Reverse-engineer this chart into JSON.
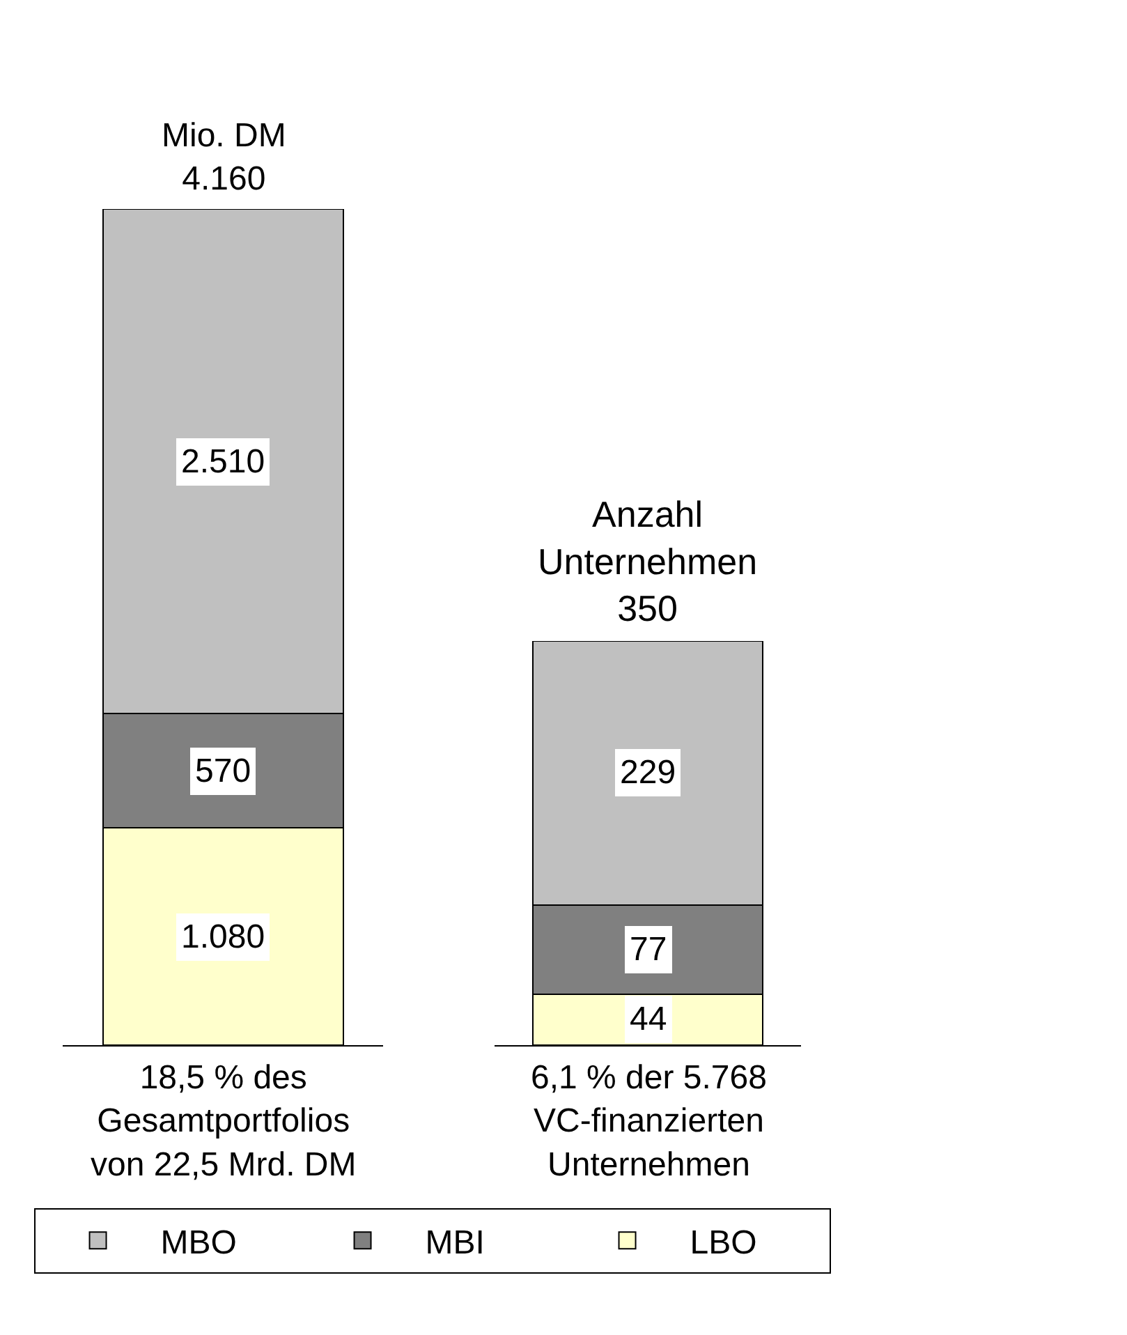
{
  "chart_data": [
    {
      "type": "bar",
      "stacked": true,
      "title": "Mio. DM",
      "totals": [
        "4.160"
      ],
      "xlabel": "18,5 % des\nGesamtportfolios\nvon 22,5 Mrd. DM",
      "categories": [
        null
      ],
      "ylim": [
        0,
        4160
      ],
      "legend": "bottom",
      "series": [
        {
          "name": "LBO",
          "color": "#ffffcc",
          "values": [
            1080
          ],
          "value_labels": [
            "1.080"
          ]
        },
        {
          "name": "MBI",
          "color": "#808080",
          "values": [
            570
          ],
          "value_labels": [
            "570"
          ]
        },
        {
          "name": "MBO",
          "color": "#c0c0c0",
          "values": [
            2510
          ],
          "value_labels": [
            "2.510"
          ]
        }
      ]
    },
    {
      "type": "bar",
      "stacked": true,
      "title": "Anzahl\nUnternehmen",
      "totals": [
        "350"
      ],
      "xlabel": "6,1 % der 5.768\nVC-finanzierten\nUnternehmen",
      "categories": [
        null
      ],
      "ylim": [
        0,
        350
      ],
      "series": [
        {
          "color": "#ffffcc",
          "values": [
            44
          ],
          "value_labels": [
            "44"
          ]
        },
        {
          "color": "#808080",
          "values": [
            77
          ],
          "value_labels": [
            "77"
          ]
        },
        {
          "color": "#c0c0c0",
          "values": [
            229
          ],
          "value_labels": [
            "229"
          ]
        }
      ]
    }
  ]
}
